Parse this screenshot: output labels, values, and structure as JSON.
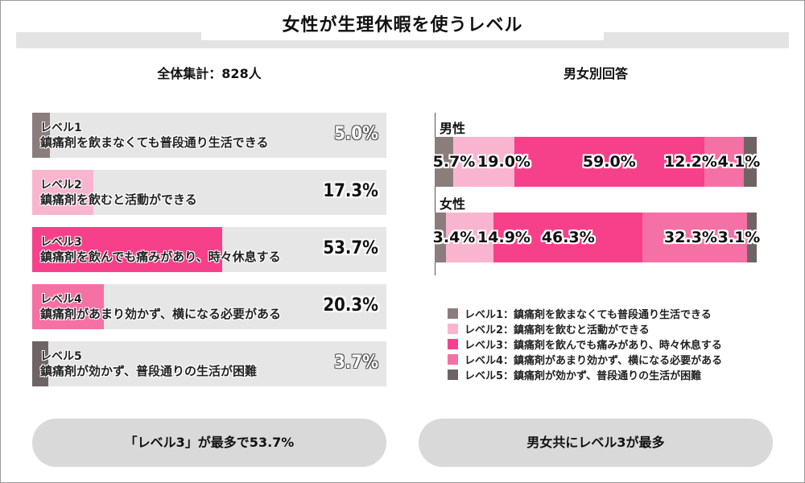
{
  "title": "女性が生理休暇を使うレベル",
  "left_subtitle": "全体集計：828人",
  "right_subtitle": "男女別回答",
  "colors": {
    "level1": "#8c7d7d",
    "level2": "#f9b5cf",
    "level3": "#f7408a",
    "level4": "#f570a4",
    "level5": "#6f6464",
    "track": "#e6e6e6"
  },
  "chart_data": [
    {
      "type": "bar",
      "orientation": "horizontal",
      "categories": [
        "レベル1 鎮痛剤を飲まなくても普段通り生活できる",
        "レベル2 鎮痛剤を飲むと活動ができる",
        "レベル3 鎮痛剤を飲んでも痛みがあり、時々休息する",
        "レベル4 鎮痛剤があまり効かず、横になる必要がある",
        "レベル5 鎮痛剤が効かず、普段通りの生活が困難"
      ],
      "values": [
        5.0,
        17.3,
        53.7,
        20.3,
        3.7
      ],
      "xlim": [
        0,
        100
      ],
      "grid": false
    },
    {
      "type": "bar",
      "stacked": true,
      "orientation": "horizontal",
      "categories": [
        "男性",
        "女性"
      ],
      "series": [
        {
          "name": "レベル1：鎮痛剤を飲まなくても普段通り生活できる",
          "values": [
            5.7,
            3.4
          ]
        },
        {
          "name": "レベル2：鎮痛剤を飲むと活動ができる",
          "values": [
            19.0,
            14.9
          ]
        },
        {
          "name": "レベル3：鎮痛剤を飲んでも痛みがあり、時々休息する",
          "values": [
            59.0,
            46.3
          ]
        },
        {
          "name": "レベル4：鎮痛剤があまり効かず、横になる必要がある",
          "values": [
            12.2,
            32.3
          ]
        },
        {
          "name": "レベル5：鎮痛剤が効かず、普段通りの生活が困難",
          "values": [
            4.1,
            3.1
          ]
        }
      ],
      "xlim": [
        0,
        100
      ],
      "legend": "bottom",
      "grid": false
    }
  ],
  "left_rows": [
    {
      "level": "レベル1",
      "desc": "鎮痛剤を飲まなくても普段通り生活できる",
      "value": 5.0,
      "label": "5.0%"
    },
    {
      "level": "レベル2",
      "desc": "鎮痛剤を飲むと活動ができる",
      "value": 17.3,
      "label": "17.3%"
    },
    {
      "level": "レベル3",
      "desc": "鎮痛剤を飲んでも痛みがあり、時々休息する",
      "value": 53.7,
      "label": "53.7%"
    },
    {
      "level": "レベル4",
      "desc": "鎮痛剤があまり効かず、横になる必要がある",
      "value": 20.3,
      "label": "20.3%"
    },
    {
      "level": "レベル5",
      "desc": "鎮痛剤が効かず、普段通りの生活が困難",
      "value": 3.7,
      "label": "3.7%"
    }
  ],
  "right_groups": [
    {
      "name": "男性",
      "labels": [
        "5.7%",
        "19.0%",
        "59.0%",
        "12.2%",
        "4.1%"
      ]
    },
    {
      "name": "女性",
      "labels": [
        "3.4%",
        "14.9%",
        "46.3%",
        "32.3%",
        "3.1%"
      ]
    }
  ],
  "bottom": {
    "left_pill": "「レベル3」が最多で53.7%",
    "right_pill": "男女共にレベル3が最多"
  }
}
